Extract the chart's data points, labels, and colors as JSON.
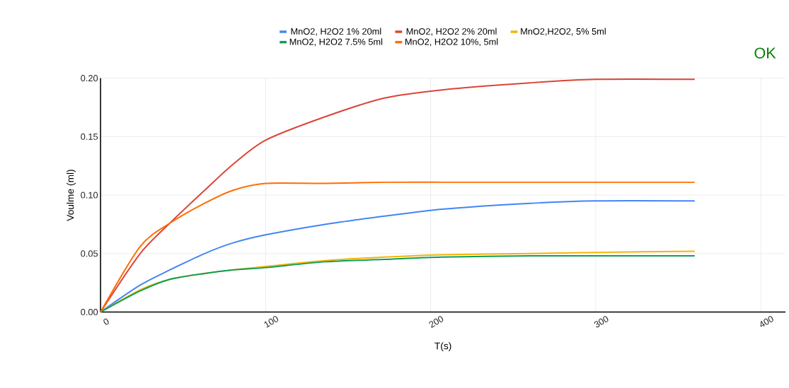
{
  "chart_data": {
    "type": "line",
    "xlabel": "T(s)",
    "ylabel": "Voulme (ml)",
    "annotations": [
      "OK"
    ],
    "xlim": [
      0,
      415
    ],
    "ylim": [
      0,
      0.2
    ],
    "xticks": [
      0,
      100,
      200,
      300,
      400
    ],
    "yticks": [
      {
        "value": 0,
        "label": "0.00"
      },
      {
        "value": 0.05,
        "label": "0.05"
      },
      {
        "value": 0.1,
        "label": "0.10"
      },
      {
        "value": 0.15,
        "label": "0.15"
      },
      {
        "value": 0.2,
        "label": "0.20"
      }
    ],
    "grid": true,
    "legend": "top",
    "x": [
      0,
      24,
      42,
      63,
      80,
      100,
      136,
      172,
      207,
      260,
      300,
      360
    ],
    "series": [
      {
        "name": "MnO2, H2O2 1% 20ml",
        "color": "#4285f4",
        "values": [
          0,
          0.023,
          0.036,
          0.05,
          0.059,
          0.066,
          0.075,
          0.082,
          0.088,
          0.093,
          0.095,
          0.095
        ]
      },
      {
        "name": "MnO2, H2O2 2% 20ml",
        "color": "#db4437",
        "values": [
          0,
          0.05,
          0.076,
          0.104,
          0.126,
          0.147,
          0.167,
          0.183,
          0.19,
          0.196,
          0.199,
          0.199
        ]
      },
      {
        "name": "MnO2,H2O2, 5% 5ml",
        "color": "#f4b400",
        "values": [
          0,
          0.019,
          0.028,
          0.033,
          0.036,
          0.039,
          0.044,
          0.047,
          0.049,
          0.05,
          0.051,
          0.052
        ]
      },
      {
        "name": "MnO2, H2O2 7.5% 5ml",
        "color": "#0f9d58",
        "values": [
          0,
          0.018,
          0.028,
          0.033,
          0.036,
          0.038,
          0.043,
          0.045,
          0.047,
          0.048,
          0.048,
          0.048
        ]
      },
      {
        "name": "MnO2, H2O2 10%, 5ml",
        "color": "#ff6d00",
        "values": [
          0,
          0.056,
          0.076,
          0.093,
          0.104,
          0.11,
          0.11,
          0.111,
          0.111,
          0.111,
          0.111,
          0.111
        ]
      }
    ]
  }
}
